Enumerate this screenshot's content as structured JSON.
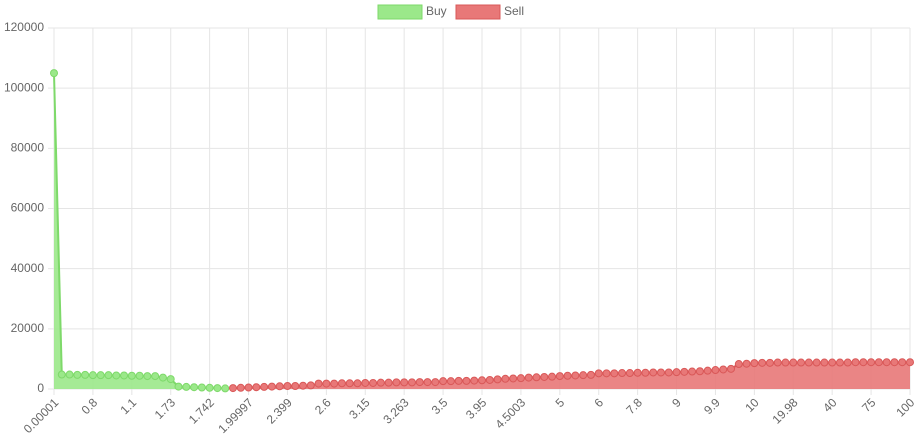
{
  "chart_data": {
    "type": "line",
    "fill": true,
    "grid": true,
    "legend": "top",
    "categories": [
      "0.00001",
      null,
      null,
      null,
      null,
      "0.8",
      null,
      null,
      null,
      null,
      "1.1",
      null,
      null,
      null,
      null,
      "1.73",
      null,
      null,
      null,
      null,
      "1.742",
      null,
      null,
      null,
      null,
      "1.99997",
      null,
      null,
      null,
      null,
      "2.399",
      null,
      null,
      null,
      null,
      "2.6",
      null,
      null,
      null,
      null,
      "3.15",
      null,
      null,
      null,
      null,
      "3.263",
      null,
      null,
      null,
      null,
      "3.5",
      null,
      null,
      null,
      null,
      "3.95",
      null,
      null,
      null,
      null,
      "4.5003",
      null,
      null,
      null,
      null,
      "5",
      null,
      null,
      null,
      null,
      "6",
      null,
      null,
      null,
      null,
      "7.8",
      null,
      null,
      null,
      null,
      "9",
      null,
      null,
      null,
      null,
      "9.9",
      null,
      null,
      null,
      null,
      "10",
      null,
      null,
      null,
      null,
      "19.98",
      null,
      null,
      null,
      null,
      "40",
      null,
      null,
      null,
      null,
      "75",
      null,
      null,
      null,
      null,
      "100"
    ],
    "ylim": [
      0,
      120000
    ],
    "yticks": [
      0,
      20000,
      40000,
      60000,
      80000,
      100000,
      120000
    ],
    "series": [
      {
        "name": "Buy",
        "color": "#9be88a",
        "border": "#7ed96a",
        "values": [
          105000,
          4800,
          4800,
          4700,
          4700,
          4600,
          4600,
          4600,
          4500,
          4500,
          4400,
          4400,
          4300,
          4300,
          3800,
          3300,
          800,
          700,
          600,
          500,
          400,
          300,
          200,
          null,
          null,
          null,
          null,
          null,
          null,
          null,
          null,
          null,
          null,
          null,
          null,
          null,
          null,
          null,
          null,
          null,
          null,
          null,
          null,
          null,
          null,
          null,
          null,
          null,
          null,
          null,
          null,
          null,
          null,
          null,
          null,
          null,
          null,
          null,
          null,
          null,
          null,
          null,
          null,
          null,
          null,
          null,
          null,
          null,
          null,
          null,
          null,
          null,
          null,
          null,
          null,
          null,
          null,
          null,
          null,
          null,
          null,
          null,
          null,
          null,
          null,
          null,
          null,
          null,
          null,
          null,
          null,
          null,
          null,
          null,
          null,
          null,
          null,
          null,
          null,
          null,
          null,
          null,
          null,
          null,
          null,
          null,
          null,
          null,
          null,
          null,
          null
        ]
      },
      {
        "name": "Sell",
        "color": "#e87878",
        "border": "#d95858",
        "values": [
          null,
          null,
          null,
          null,
          null,
          null,
          null,
          null,
          null,
          null,
          null,
          null,
          null,
          null,
          null,
          null,
          null,
          null,
          null,
          null,
          null,
          null,
          null,
          300,
          400,
          500,
          600,
          700,
          800,
          900,
          1000,
          1000,
          1100,
          1200,
          1800,
          1800,
          1800,
          1900,
          1900,
          1900,
          2000,
          2000,
          2100,
          2100,
          2200,
          2200,
          2200,
          2300,
          2300,
          2300,
          2600,
          2600,
          2700,
          2700,
          2800,
          2900,
          3000,
          3200,
          3400,
          3500,
          3600,
          3800,
          3900,
          4000,
          4100,
          4300,
          4400,
          4500,
          4600,
          4700,
          5200,
          5200,
          5200,
          5300,
          5300,
          5400,
          5400,
          5500,
          5500,
          5500,
          5600,
          5700,
          5800,
          5900,
          6100,
          6300,
          6500,
          6700,
          8300,
          8400,
          8600,
          8700,
          8700,
          8800,
          8800,
          8800,
          8800,
          8800,
          8800,
          8800,
          8800,
          8800,
          8800,
          8900,
          8900,
          8900,
          8900,
          8900,
          8900,
          8900,
          8900
        ]
      }
    ]
  }
}
